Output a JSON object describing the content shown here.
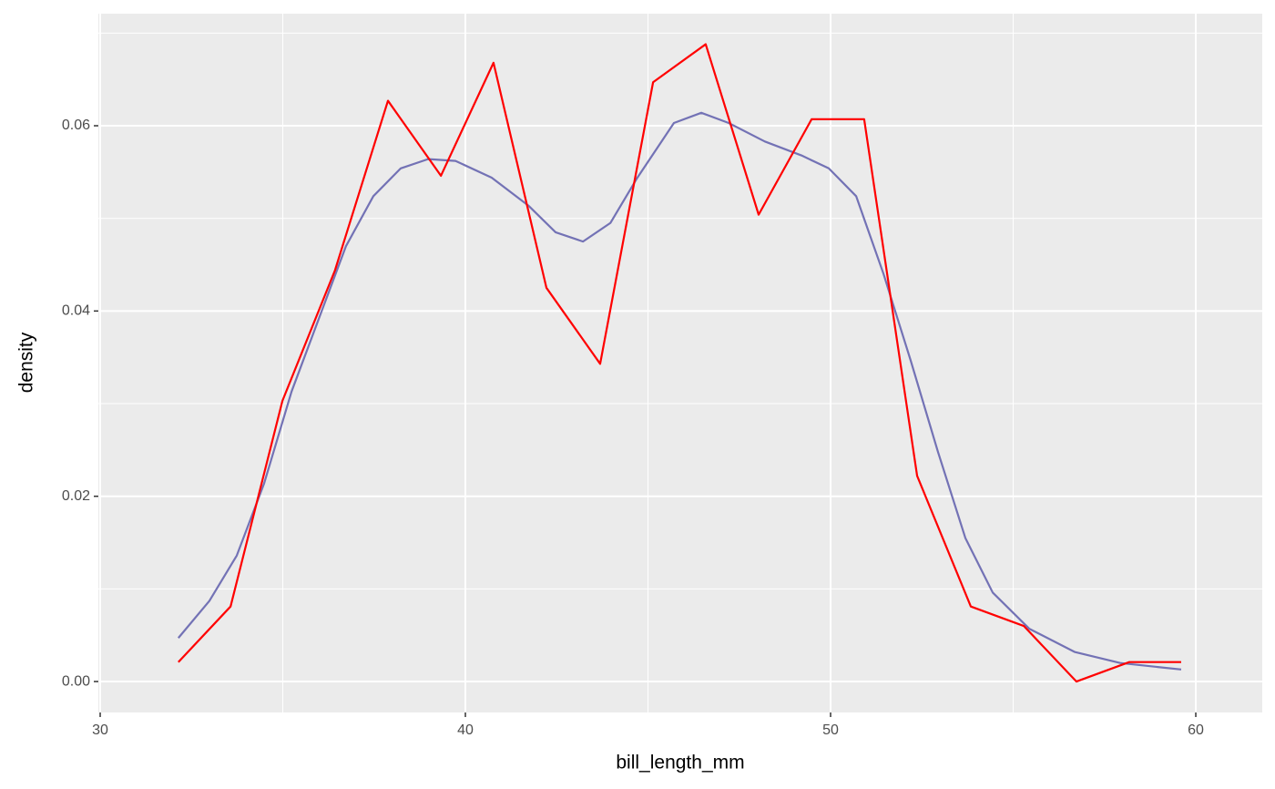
{
  "chart_data": {
    "type": "line",
    "x_label": "bill_length_mm",
    "y_label": "density",
    "xlim": [
      29.95,
      61.82
    ],
    "ylim": [
      -0.00334,
      0.0721
    ],
    "xticks": [
      30,
      40,
      50,
      60
    ],
    "yticks": [
      {
        "value": 0,
        "label": "0.00"
      },
      {
        "value": 0.02,
        "label": "0.02"
      },
      {
        "value": 0.04,
        "label": "0.04"
      },
      {
        "value": 0.06,
        "label": "0.06"
      }
    ],
    "grid": true,
    "series": [
      {
        "color": "#7372b5",
        "x": [
          32.14,
          32.99,
          33.74,
          34.49,
          35.24,
          35.99,
          36.73,
          37.48,
          38.23,
          38.98,
          39.73,
          40.72,
          41.72,
          42.47,
          43.22,
          43.97,
          44.71,
          45.71,
          46.46,
          47.21,
          48.2,
          49.2,
          49.95,
          50.7,
          51.45,
          52.19,
          52.94,
          53.69,
          54.44,
          55.44,
          56.68,
          57.93,
          59.6
        ],
        "values": [
          0.0047,
          0.0087,
          0.0136,
          0.0214,
          0.0313,
          0.0392,
          0.047,
          0.0524,
          0.0554,
          0.0564,
          0.0562,
          0.0544,
          0.0514,
          0.0485,
          0.0475,
          0.0495,
          0.0544,
          0.0603,
          0.0614,
          0.0603,
          0.0583,
          0.0568,
          0.0554,
          0.0524,
          0.044,
          0.0347,
          0.0248,
          0.0155,
          0.0096,
          0.0057,
          0.0032,
          0.002,
          0.0013
        ]
      },
      {
        "color": "#ff0000",
        "x": [
          32.14,
          33.57,
          34.99,
          36.43,
          37.88,
          39.33,
          40.77,
          42.22,
          43.69,
          45.14,
          46.58,
          48.03,
          49.48,
          50.92,
          52.37,
          53.84,
          55.29,
          56.73,
          58.18,
          59.6
        ],
        "values": [
          0.0021,
          0.0081,
          0.0303,
          0.0444,
          0.0627,
          0.0546,
          0.0668,
          0.0425,
          0.0343,
          0.0647,
          0.0688,
          0.0504,
          0.0607,
          0.0607,
          0.0222,
          0.0081,
          0.006,
          0,
          0.0021,
          0.0021
        ]
      }
    ]
  }
}
